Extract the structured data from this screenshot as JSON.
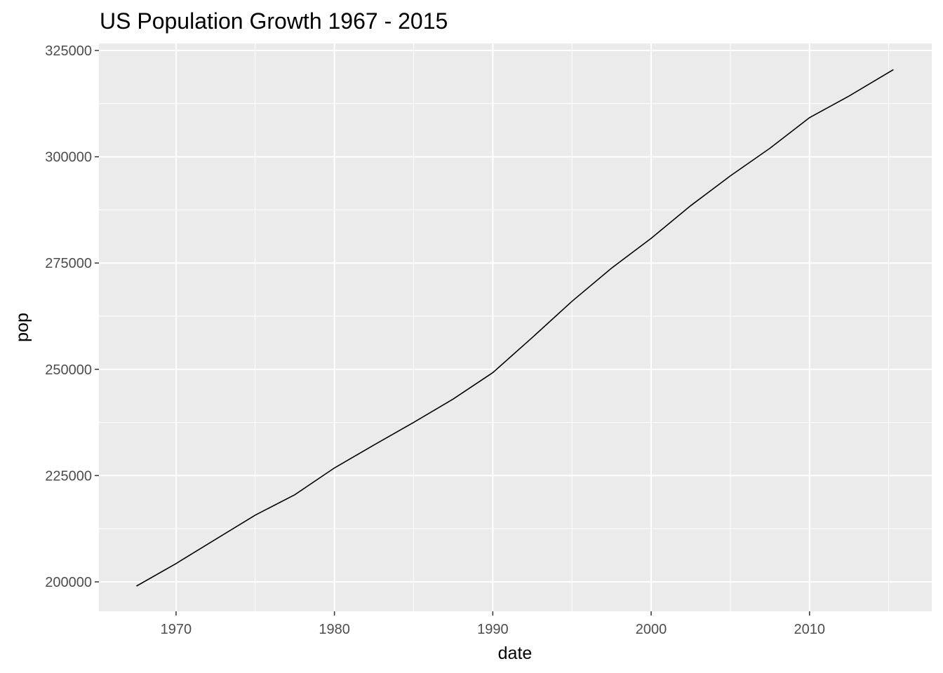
{
  "chart_data": {
    "type": "line",
    "title": "US Population Growth 1967 - 2015",
    "xlabel": "date",
    "ylabel": "pop",
    "xlim": [
      1965.13,
      2017.72
    ],
    "ylim": [
      193070,
      326650
    ],
    "grid": true,
    "x_ticks": [
      1970,
      1980,
      1990,
      2000,
      2010
    ],
    "x_tick_labels": [
      "1970",
      "1980",
      "1990",
      "2000",
      "2010"
    ],
    "y_ticks": [
      200000,
      225000,
      250000,
      275000,
      300000,
      325000
    ],
    "y_tick_labels": [
      "200000",
      "225000",
      "250000",
      "275000",
      "300000",
      "325000"
    ],
    "series": [
      {
        "name": "pop",
        "color": "#000000",
        "x": [
          1967.5,
          1970,
          1972.5,
          1975,
          1977.5,
          1980,
          1982.5,
          1985,
          1987.5,
          1990,
          1992.5,
          1995,
          1997.5,
          2000,
          2002.5,
          2005,
          2007.5,
          2010,
          2012.5,
          2015.3
        ],
        "y": [
          199000,
          204300,
          210000,
          215700,
          220500,
          226800,
          232200,
          237500,
          243000,
          249200,
          257500,
          266000,
          273800,
          280800,
          288500,
          295500,
          302000,
          309200,
          314300,
          320500
        ]
      }
    ]
  }
}
